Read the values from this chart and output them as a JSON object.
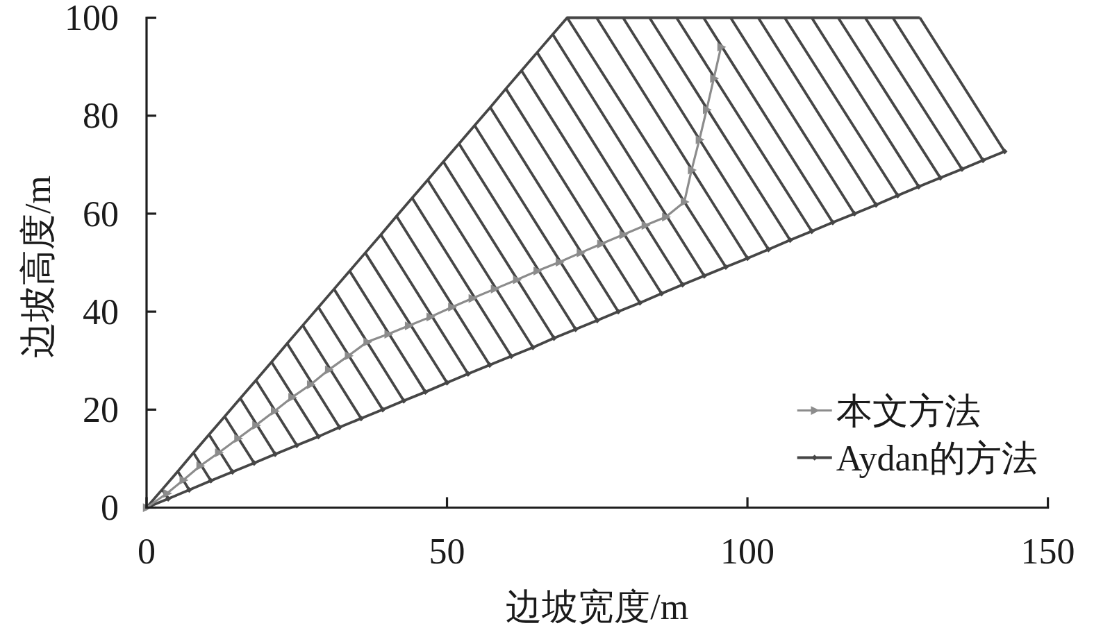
{
  "chart_data": {
    "type": "line",
    "xlabel": "边坡宽度/m",
    "ylabel": "边坡高度/m",
    "xlim": [
      0,
      150
    ],
    "ylim": [
      0,
      100
    ],
    "xticks": [
      0,
      50,
      100,
      150
    ],
    "yticks": [
      0,
      20,
      40,
      60,
      80,
      100
    ],
    "legend": "bottom right",
    "series": [
      {
        "name": "本文方法",
        "color": "#8c8c8c",
        "marker": "triangle",
        "x": [
          0,
          3.4,
          6.1,
          8.9,
          12.0,
          15.2,
          18.2,
          21.3,
          24.2,
          27.3,
          30.3,
          33.6,
          36.7,
          40.2,
          43.6,
          47.2,
          50.8,
          54.2,
          57.9,
          61.6,
          65.0,
          68.7,
          72.2,
          75.6,
          79.3,
          83.0,
          86.4,
          89.5,
          90.7,
          92.0,
          93.2,
          94.4,
          95.6
        ],
        "values": [
          0,
          2.9,
          5.6,
          8.5,
          11.2,
          14.1,
          16.8,
          19.7,
          22.5,
          25.1,
          28.1,
          31.0,
          33.8,
          35.4,
          37.1,
          38.9,
          40.9,
          42.7,
          44.6,
          46.5,
          48.3,
          50.1,
          52.0,
          53.8,
          55.7,
          57.6,
          59.3,
          62.4,
          68.9,
          75.1,
          81.2,
          87.6,
          94.0
        ]
      },
      {
        "name": "Aydan的方法",
        "color": "#464646",
        "marker": "diamond",
        "x": [
          0,
          3.6,
          7.1,
          10.7,
          14.3,
          17.9,
          21.4,
          25.0,
          28.6,
          32.1,
          35.7,
          39.3,
          42.8,
          46.4,
          50.0,
          53.5,
          57.1,
          60.7,
          64.3,
          67.8,
          71.4,
          75.0,
          78.5,
          82.1,
          85.7,
          89.2,
          92.8,
          96.4,
          100.0,
          103.5,
          107.1,
          110.7,
          114.2,
          117.8,
          121.4,
          125.0,
          128.5,
          132.1,
          135.7,
          139.2,
          142.8
        ],
        "values": [
          0,
          1.8,
          3.6,
          5.5,
          7.3,
          9.1,
          10.9,
          12.7,
          14.5,
          16.4,
          18.2,
          20.0,
          21.8,
          23.6,
          25.5,
          27.3,
          29.1,
          30.9,
          32.7,
          34.6,
          36.4,
          38.2,
          40.0,
          41.8,
          43.7,
          45.5,
          47.3,
          49.1,
          50.9,
          52.7,
          54.6,
          56.4,
          58.2,
          60.0,
          61.8,
          63.7,
          65.5,
          67.3,
          69.1,
          70.9,
          72.7
        ]
      },
      {
        "color": "#464646",
        "marker": "none",
        "x": [
          0,
          2.6,
          5.2,
          7.8,
          10.4,
          13.0,
          15.6,
          18.2,
          20.8,
          23.4,
          26.0,
          28.6,
          31.2,
          33.8,
          36.4,
          39.0,
          41.6,
          44.2,
          46.8,
          49.4,
          52.0,
          54.6,
          57.2,
          59.8,
          62.4,
          65.0,
          67.6,
          70.0,
          74.9,
          79.3,
          83.7,
          88.2,
          92.7,
          97.2,
          101.8,
          106.2,
          110.7,
          115.1,
          119.6,
          124.2,
          128.7
        ],
        "values": [
          0,
          3.7,
          7.4,
          11.2,
          14.9,
          18.6,
          22.3,
          26.0,
          29.7,
          33.5,
          37.2,
          40.9,
          44.6,
          48.3,
          52.0,
          55.7,
          59.5,
          63.2,
          66.9,
          70.6,
          74.3,
          78.0,
          81.7,
          85.5,
          89.2,
          92.9,
          96.6,
          100,
          100,
          100,
          100,
          100,
          100,
          100,
          100,
          100,
          100,
          100,
          100,
          100,
          100
        ]
      },
      {
        "color": "#464646",
        "marker": "none",
        "x": [
          2.6,
          3.6,
          null,
          5.2,
          7.1,
          null,
          7.8,
          10.7,
          null,
          10.4,
          14.3,
          null,
          13.0,
          17.9,
          null,
          15.6,
          21.4,
          null,
          18.2,
          25.0,
          null,
          20.8,
          28.6,
          null,
          23.4,
          32.1,
          null,
          26.0,
          35.7,
          null,
          28.6,
          39.3,
          null,
          31.2,
          42.8,
          null,
          33.8,
          46.4,
          null,
          36.4,
          50.0,
          null,
          39.0,
          53.5,
          null,
          41.6,
          57.1,
          null,
          44.2,
          60.7,
          null,
          46.8,
          64.3,
          null,
          49.4,
          67.8,
          null,
          52.0,
          71.4,
          null,
          54.6,
          75.0,
          null,
          57.2,
          78.5,
          null,
          59.8,
          82.1,
          null,
          62.4,
          85.7,
          null,
          65.0,
          89.2,
          null,
          67.6,
          92.8,
          null,
          70.0,
          96.4,
          null,
          74.9,
          100.0,
          null,
          79.3,
          103.5,
          null,
          83.7,
          107.1,
          null,
          88.2,
          110.7,
          null,
          92.7,
          114.2,
          null,
          97.2,
          117.8,
          null,
          101.8,
          121.4,
          null,
          106.2,
          125.0,
          null,
          110.7,
          128.5,
          null,
          115.1,
          132.1,
          null,
          119.6,
          135.7,
          null,
          124.2,
          139.2,
          null,
          128.7,
          142.8
        ],
        "values": [
          3.7,
          1.8,
          null,
          7.4,
          3.6,
          null,
          11.2,
          5.5,
          null,
          14.9,
          7.3,
          null,
          18.6,
          9.1,
          null,
          22.3,
          10.9,
          null,
          26.0,
          12.7,
          null,
          29.7,
          14.5,
          null,
          33.5,
          16.4,
          null,
          37.2,
          18.2,
          null,
          40.9,
          20.0,
          null,
          44.6,
          21.8,
          null,
          48.3,
          23.6,
          null,
          52.0,
          25.5,
          null,
          55.7,
          27.3,
          null,
          59.5,
          29.1,
          null,
          63.2,
          30.9,
          null,
          66.9,
          32.7,
          null,
          70.6,
          34.6,
          null,
          74.3,
          36.4,
          null,
          78.0,
          38.2,
          null,
          81.7,
          40.0,
          null,
          85.5,
          41.8,
          null,
          89.2,
          43.7,
          null,
          92.9,
          45.5,
          null,
          96.6,
          47.3,
          null,
          100,
          49.1,
          null,
          100,
          50.9,
          null,
          100,
          52.7,
          null,
          100,
          54.6,
          null,
          100,
          56.4,
          null,
          100,
          58.2,
          null,
          100,
          60.0,
          null,
          100,
          61.8,
          null,
          100,
          63.7,
          null,
          100,
          65.5,
          null,
          100,
          67.3,
          null,
          100,
          69.1,
          null,
          100,
          70.9,
          null,
          100,
          72.7
        ]
      }
    ]
  }
}
